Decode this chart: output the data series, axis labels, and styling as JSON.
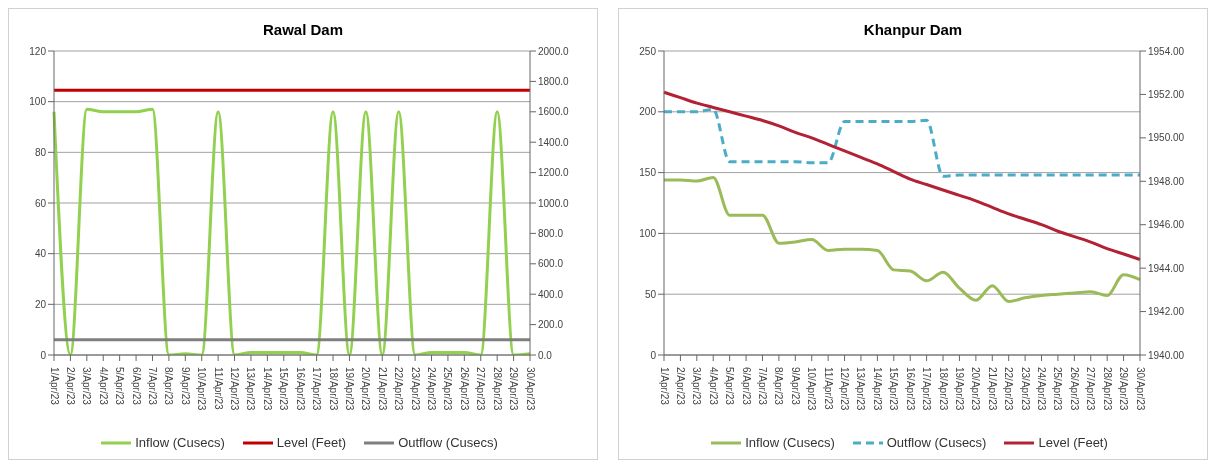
{
  "chart_data": [
    {
      "type": "line",
      "title": "Rawal Dam",
      "categories": [
        "1/Apr/23",
        "2/Apr/23",
        "3/Apr/23",
        "4/Apr/23",
        "5/Apr/23",
        "6/Apr/23",
        "7/Apr/23",
        "8/Apr/23",
        "9/Apr/23",
        "10/Apr/23",
        "11/Apr/23",
        "12/Apr/23",
        "13/Apr/23",
        "14/Apr/23",
        "15/Apr/23",
        "16/Apr/23",
        "17/Apr/23",
        "18/Apr/23",
        "19/Apr/23",
        "20/Apr/23",
        "21/Apr/23",
        "22/Apr/23",
        "23/Apr/23",
        "24/Apr/23",
        "25/Apr/23",
        "26/Apr/23",
        "27/Apr/23",
        "28/Apr/23",
        "29/Apr/23",
        "30/Apr/23"
      ],
      "series": [
        {
          "name": "Inflow (Cusecs)",
          "color": "#92d050",
          "values": [
            96,
            0,
            97,
            96,
            96,
            96,
            97,
            0,
            0.5,
            0,
            96,
            0,
            1,
            1,
            1,
            1,
            0,
            96,
            0,
            96,
            0,
            96,
            0,
            1,
            1,
            1,
            0,
            96,
            0,
            0.5
          ]
        },
        {
          "name": "Level (Feet)",
          "color": "#c00000",
          "axis": "y2",
          "values": [
            1742,
            1742,
            1742,
            1742,
            1742,
            1742,
            1742,
            1742,
            1742,
            1742,
            1742,
            1742,
            1742,
            1742,
            1742,
            1742,
            1742,
            1742,
            1742,
            1742,
            1742,
            1742,
            1742,
            1742,
            1742,
            1742,
            1742,
            1742,
            1742,
            1742
          ]
        },
        {
          "name": "Outflow (Cusecs)",
          "color": "#7f7f7f",
          "values": [
            6,
            6,
            6,
            6,
            6,
            6,
            6,
            6,
            6,
            6,
            6,
            6,
            6,
            6,
            6,
            6,
            6,
            6,
            6,
            6,
            6,
            6,
            6,
            6,
            6,
            6,
            6,
            6,
            6,
            6
          ]
        }
      ],
      "ylim": [
        0,
        120
      ],
      "yticks": [
        0,
        20,
        40,
        60,
        80,
        100,
        120
      ],
      "y2lim": [
        0,
        2000
      ],
      "y2ticks": [
        {
          "value": 0,
          "label": "0.0"
        },
        {
          "value": 200,
          "label": "200.0"
        },
        {
          "value": 400,
          "label": "400.0"
        },
        {
          "value": 600,
          "label": "600.0"
        },
        {
          "value": 800,
          "label": "800.0"
        },
        {
          "value": 1000,
          "label": "1000.0"
        },
        {
          "value": 1200,
          "label": "1200.0"
        },
        {
          "value": 1400,
          "label": "1400.0"
        },
        {
          "value": 1600,
          "label": "1600.0"
        },
        {
          "value": 1800,
          "label": "1800.0"
        },
        {
          "value": 2000,
          "label": "2000.0"
        }
      ],
      "grid": "y",
      "legend": "bottom",
      "marker": "none",
      "line_style": "solid"
    },
    {
      "type": "line",
      "title": "Khanpur Dam",
      "categories": [
        "1/Apr/23",
        "2/Apr/23",
        "3/Apr/23",
        "4/Apr/23",
        "5/Apr/23",
        "6/Apr/23",
        "7/Apr/23",
        "8/Apr/23",
        "9/Apr/23",
        "10/Apr/23",
        "11/Apr/23",
        "12/Apr/23",
        "13/Apr/23",
        "14/Apr/23",
        "15/Apr/23",
        "16/Apr/23",
        "17/Apr/23",
        "18/Apr/23",
        "19/Apr/23",
        "20/Apr/23",
        "21/Apr/23",
        "22/Apr/23",
        "23/Apr/23",
        "24/Apr/23",
        "25/Apr/23",
        "26/Apr/23",
        "27/Apr/23",
        "28/Apr/23",
        "29/Apr/23",
        "30/Apr/23"
      ],
      "series": [
        {
          "name": "Inflow (Cusecs)",
          "color": "#9bbb59",
          "values": [
            144,
            144,
            143,
            146,
            115,
            115,
            115,
            92,
            93,
            95,
            86,
            87,
            87,
            86,
            70,
            69,
            61,
            68,
            55,
            45,
            57,
            44,
            47,
            49,
            50,
            51,
            52,
            49,
            66,
            62
          ]
        },
        {
          "name": "Outflow (Cusecs)",
          "color": "#4bacc6",
          "line_style": "dashed",
          "values": [
            200,
            200,
            200,
            202,
            159,
            159,
            159,
            159,
            159,
            158,
            158,
            192,
            192,
            192,
            192,
            192,
            193,
            147,
            148,
            148,
            148,
            148,
            148,
            148,
            148,
            148,
            148,
            148,
            148,
            148
          ]
        },
        {
          "name": "Level (Feet)",
          "color": "#b22234",
          "axis": "y2",
          "values": [
            1952.1,
            1951.85,
            1951.6,
            1951.4,
            1951.2,
            1951.0,
            1950.8,
            1950.55,
            1950.25,
            1950.0,
            1949.7,
            1949.4,
            1949.1,
            1948.8,
            1948.45,
            1948.1,
            1947.85,
            1947.6,
            1947.35,
            1947.1,
            1946.8,
            1946.5,
            1946.25,
            1946.0,
            1945.7,
            1945.45,
            1945.2,
            1944.9,
            1944.65,
            1944.4
          ]
        }
      ],
      "ylim": [
        0,
        250
      ],
      "yticks": [
        0,
        50,
        100,
        150,
        200,
        250
      ],
      "y2lim": [
        1940,
        1954
      ],
      "y2ticks": [
        {
          "value": 1940,
          "label": "1940.00"
        },
        {
          "value": 1942,
          "label": "1942.00"
        },
        {
          "value": 1944,
          "label": "1944.00"
        },
        {
          "value": 1946,
          "label": "1946.00"
        },
        {
          "value": 1948,
          "label": "1948.00"
        },
        {
          "value": 1950,
          "label": "1950.00"
        },
        {
          "value": 1952,
          "label": "1952.00"
        },
        {
          "value": 1954,
          "label": "1954.00"
        }
      ],
      "grid": "y",
      "legend": "bottom",
      "marker": "none",
      "line_style": "solid"
    }
  ]
}
